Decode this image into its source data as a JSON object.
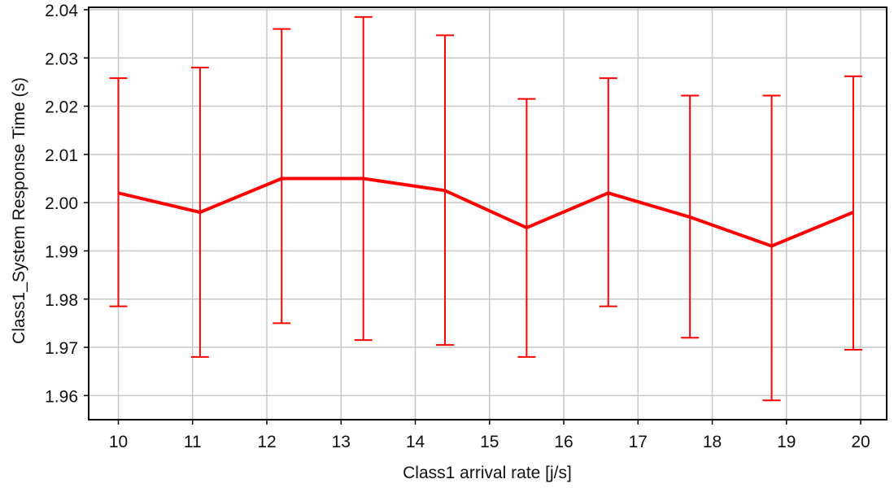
{
  "chart_data": {
    "type": "line",
    "title": "",
    "xlabel": "Class1 arrival rate [j/s]",
    "ylabel": "Class1_System Response Time (s)",
    "xlim": [
      9.6,
      20.35
    ],
    "ylim": [
      1.955,
      2.0405
    ],
    "x_ticks": [
      10,
      11,
      12,
      13,
      14,
      15,
      16,
      17,
      18,
      19,
      20
    ],
    "x_tick_labels": [
      "10",
      "11",
      "12",
      "13",
      "14",
      "15",
      "16",
      "17",
      "18",
      "19",
      "20"
    ],
    "y_ticks": [
      1.96,
      1.97,
      1.98,
      1.99,
      2.0,
      2.01,
      2.02,
      2.03,
      2.04
    ],
    "y_tick_labels": [
      "1.96",
      "1.97",
      "1.98",
      "1.99",
      "2.00",
      "2.01",
      "2.02",
      "2.03",
      "2.04"
    ],
    "grid": true,
    "legend": "none",
    "series": [
      {
        "color": "#ff0000",
        "x": [
          10.0,
          11.1,
          12.2,
          13.3,
          14.4,
          15.5,
          16.6,
          17.7,
          18.8,
          19.9
        ],
        "y": [
          2.002,
          1.998,
          2.005,
          2.005,
          2.0025,
          1.9948,
          2.002,
          1.997,
          1.991,
          1.998
        ],
        "err_lower": [
          1.9785,
          1.968,
          1.975,
          1.9715,
          1.9705,
          1.968,
          1.9785,
          1.972,
          1.959,
          1.9695
        ],
        "err_upper": [
          2.0258,
          2.028,
          2.036,
          2.0385,
          2.0347,
          2.0215,
          2.0258,
          2.0222,
          2.0222,
          2.0262
        ]
      }
    ]
  }
}
